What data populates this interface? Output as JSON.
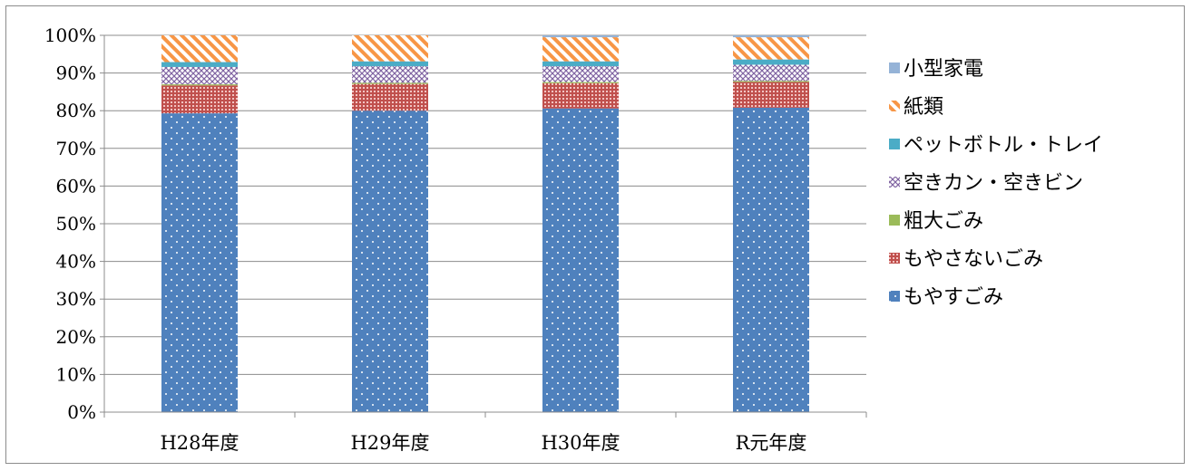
{
  "chart_data": {
    "type": "bar",
    "stacked": true,
    "normalized": true,
    "title": "",
    "xlabel": "",
    "ylabel": "",
    "ylim": [
      0,
      100
    ],
    "y_tick_step": 10,
    "y_tick_suffix": "%",
    "grid": true,
    "legend_position": "right",
    "categories": [
      "H28年度",
      "H29年度",
      "H30年度",
      "R元年度"
    ],
    "series": [
      {
        "name": "もやすごみ",
        "values": [
          79.3,
          80.0,
          80.6,
          80.8
        ],
        "color": "#4f81bd",
        "pattern": "dots"
      },
      {
        "name": "もやさないごみ",
        "values": [
          7.4,
          7.1,
          6.7,
          6.8
        ],
        "color": "#c0504d",
        "pattern": "grid"
      },
      {
        "name": "粗大ごみ",
        "values": [
          0.3,
          0.3,
          0.3,
          0.3
        ],
        "color": "#9bbb59",
        "pattern": "solid"
      },
      {
        "name": "空きカン・空きビン",
        "values": [
          4.6,
          4.4,
          4.2,
          4.3
        ],
        "color": "#8064a2",
        "pattern": "diamond"
      },
      {
        "name": "ペットボトル・トレイ",
        "values": [
          1.3,
          1.3,
          1.3,
          1.4
        ],
        "color": "#4bacc6",
        "pattern": "solid"
      },
      {
        "name": "紙類",
        "values": [
          7.1,
          6.9,
          6.4,
          5.9
        ],
        "color": "#f79646",
        "pattern": "hatch"
      },
      {
        "name": "小型家電",
        "values": [
          0.0,
          0.0,
          0.5,
          0.5
        ],
        "color": "#95b3d7",
        "pattern": "solid"
      }
    ]
  }
}
